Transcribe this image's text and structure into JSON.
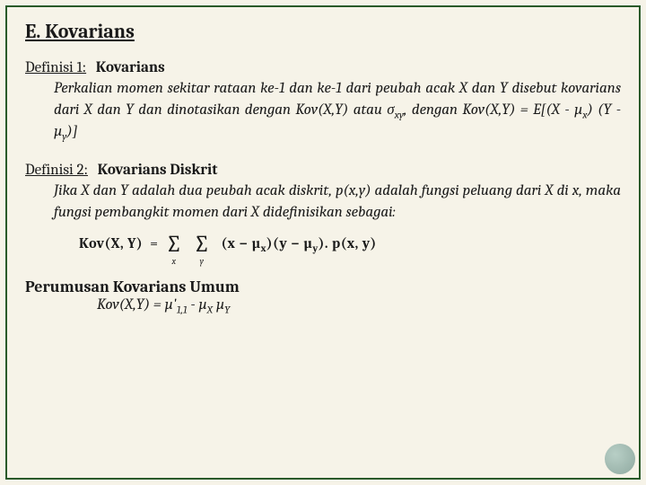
{
  "section": {
    "title": "E. Kovarians"
  },
  "def1": {
    "label": "Definisi 1:",
    "term": "Kovarians",
    "body_html": "Perkalian momen sekitar rataan ke-1 dan ke-1 dari peubah acak X dan Y disebut kovarians dari X dan Y dan dinotasikan dengan Kov(X,Y) atau σ<sub>xy</sub>, dengan Kov(X,Y) = E[(X - µ<sub>x</sub>) (Y - µ<sub>y</sub>)]"
  },
  "def2": {
    "label": "Definisi 2:",
    "term": "Kovarians Diskrit",
    "body_html": "Jika X dan Y adalah dua peubah acak diskrit, p(x,y) adalah fungsi peluang dari X di x,  maka fungsi pembangkit momen dari X didefinisikan sebagai:"
  },
  "formula": {
    "lhs": "Kov(X, Y)",
    "sum1_var": "x",
    "sum2_var": "y",
    "term1": "(x − µ",
    "term1_sub": "x",
    "term2": ")(y − µ",
    "term2_sub": "y",
    "term3": "). p(x, y)"
  },
  "general": {
    "title": "Perumusan Kovarians Umum",
    "body_html": "Kov(X,Y) = µ'<sub>1,1</sub> - µ<sub>X</sub> µ<sub>Y</sub>"
  },
  "style": {
    "background_color": "#f6f3e8",
    "border_color": "#2a5a2a",
    "text_color": "#1a1a1a",
    "circle_color": "#8fa9a0",
    "title_fontsize": 22,
    "body_fontsize": 17,
    "font_family": "Cambria / Georgia serif"
  }
}
